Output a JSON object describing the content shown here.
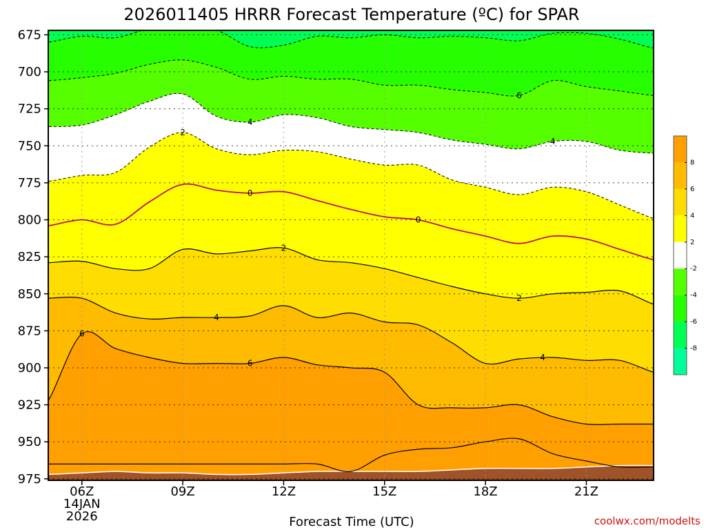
{
  "chart_data": {
    "type": "heatmap",
    "title": "2026011405 HRRR Forecast Temperature (ºC) for SPAR",
    "xlabel": "Forecast Time (UTC)",
    "ylabel": "",
    "y_axis": {
      "ticks": [
        675,
        700,
        725,
        750,
        775,
        800,
        825,
        850,
        875,
        900,
        925,
        950,
        975
      ],
      "reversed": true,
      "range": [
        672,
        976
      ]
    },
    "x_axis": {
      "range_hours": [
        5,
        23
      ],
      "ticks": [
        {
          "hour": 6,
          "label": "06Z",
          "sub": [
            "14JAN",
            "2026"
          ]
        },
        {
          "hour": 9,
          "label": "09Z",
          "sub": []
        },
        {
          "hour": 12,
          "label": "12Z",
          "sub": []
        },
        {
          "hour": 15,
          "label": "15Z",
          "sub": []
        },
        {
          "hour": 18,
          "label": "18Z",
          "sub": []
        },
        {
          "hour": 21,
          "label": "21Z",
          "sub": []
        }
      ]
    },
    "grid": true,
    "hours": [
      5,
      6,
      7,
      8,
      9,
      10,
      11,
      12,
      13,
      14,
      15,
      16,
      17,
      18,
      19,
      20,
      21,
      22,
      23
    ],
    "ground": [
      972,
      971,
      970,
      971,
      971,
      972,
      972,
      971,
      970,
      970,
      970,
      970,
      969,
      968,
      968,
      968,
      967,
      966,
      966
    ],
    "isotherms": [
      {
        "value": 8,
        "pressure": [
          965,
          965,
          965,
          965,
          965,
          965,
          965,
          965,
          965,
          970,
          959,
          955,
          954,
          950,
          948,
          958,
          963,
          967,
          967
        ]
      },
      {
        "value": 6,
        "pressure": [
          922,
          877,
          887,
          893,
          897,
          897,
          897,
          893,
          898,
          900,
          903,
          925,
          927,
          927,
          925,
          933,
          938,
          938,
          938
        ]
      },
      {
        "value": 4,
        "pressure": [
          853,
          853,
          863,
          867,
          866,
          866,
          865,
          858,
          866,
          863,
          869,
          871,
          883,
          897,
          894,
          893,
          895,
          895,
          903
        ]
      },
      {
        "value": 2,
        "pressure": [
          829,
          828,
          833,
          833,
          820,
          823,
          821,
          819,
          827,
          829,
          833,
          839,
          845,
          850,
          853,
          850,
          849,
          848,
          857
        ]
      },
      {
        "value": 0,
        "pressure": [
          804,
          800,
          803,
          788,
          776,
          780,
          782,
          781,
          787,
          793,
          798,
          800,
          806,
          811,
          816,
          811,
          813,
          820,
          827
        ]
      },
      {
        "value": -2,
        "pressure": [
          774,
          770,
          768,
          751,
          741,
          752,
          756,
          753,
          754,
          759,
          763,
          763,
          773,
          778,
          783,
          778,
          781,
          790,
          799
        ]
      },
      {
        "value": -4,
        "pressure": [
          737,
          736,
          729,
          720,
          715,
          730,
          734,
          729,
          731,
          737,
          739,
          741,
          746,
          749,
          752,
          747,
          747,
          753,
          755
        ]
      },
      {
        "value": -6,
        "pressure": [
          706,
          704,
          701,
          695,
          692,
          697,
          705,
          703,
          705,
          705,
          709,
          709,
          712,
          714,
          716,
          706,
          710,
          713,
          716
        ]
      },
      {
        "value": -8,
        "pressure": [
          680,
          676,
          677,
          671,
          671,
          672,
          683,
          682,
          676,
          677,
          675,
          677,
          676,
          677,
          679,
          674,
          674,
          678,
          684
        ]
      }
    ],
    "contour_labels": [
      {
        "value": 6,
        "hour": 6.0,
        "pressure": 877
      },
      {
        "value": 6,
        "hour": 11.0,
        "pressure": 897
      },
      {
        "value": 4,
        "hour": 10.0,
        "pressure": 866
      },
      {
        "value": 4,
        "hour": 19.7,
        "pressure": 893
      },
      {
        "value": 2,
        "hour": 12.0,
        "pressure": 819
      },
      {
        "value": 2,
        "hour": 19.0,
        "pressure": 853
      },
      {
        "value": 0,
        "hour": 11.0,
        "pressure": 782
      },
      {
        "value": 0,
        "hour": 16.0,
        "pressure": 800
      },
      {
        "value": -2,
        "hour": 9.0,
        "pressure": 741
      },
      {
        "value": -4,
        "hour": 11.0,
        "pressure": 734
      },
      {
        "value": -4,
        "hour": 20.0,
        "pressure": 747
      },
      {
        "value": -6,
        "hour": 19.0,
        "pressure": 716
      }
    ],
    "colorbar": {
      "levels": [
        -10,
        -8,
        -6,
        -4,
        -2,
        2,
        4,
        6,
        8,
        10
      ],
      "labels": [
        "-8",
        "-6",
        "-4",
        "-2",
        "2",
        "4",
        "6",
        "8"
      ],
      "colors": [
        "#00ff9a",
        "#00ff55",
        "#27ff00",
        "#55ff00",
        "#ffffff",
        "#ffff00",
        "#ffdd00",
        "#ffbb00",
        "#ffa000"
      ]
    },
    "band_colors": [
      {
        "range": [
          8,
          10
        ],
        "color": "#ffa000"
      },
      {
        "range": [
          6,
          8
        ],
        "color": "#ffbb00"
      },
      {
        "range": [
          4,
          6
        ],
        "color": "#ffdd00"
      },
      {
        "range": [
          2,
          4
        ],
        "color": "#ffff00"
      },
      {
        "range": [
          -2,
          2
        ],
        "color": "#ffffff"
      },
      {
        "range": [
          -4,
          -2
        ],
        "color": "#55ff00"
      },
      {
        "range": [
          -6,
          -4
        ],
        "color": "#27ff00"
      },
      {
        "range": [
          -8,
          -6
        ],
        "color": "#00ff55"
      },
      {
        "range": [
          -10,
          -8
        ],
        "color": "#00ff9a"
      }
    ],
    "ground_color": "#a05228",
    "freezing_line_color": "#c0105a"
  },
  "credit": "coolwx.com/modelts"
}
